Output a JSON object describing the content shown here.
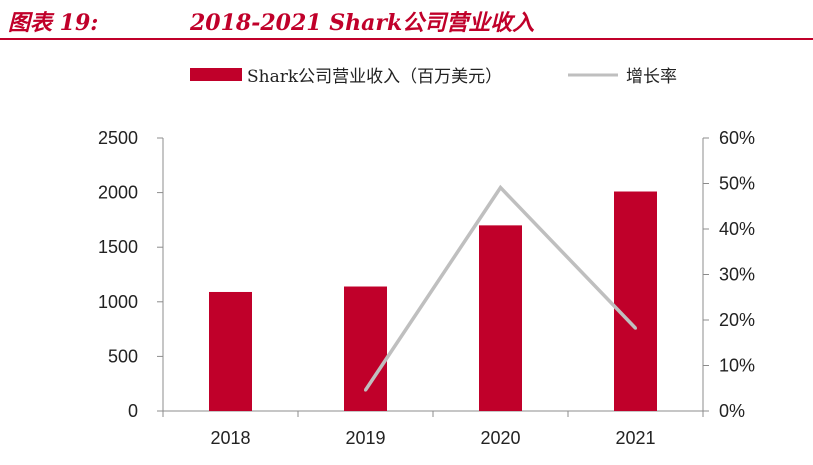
{
  "header": {
    "figure_label": "图表 19:",
    "figure_title": "2018-2021 Shark公司营业收入"
  },
  "colors": {
    "accent": "#c0002a",
    "bar": "#c0002a",
    "line": "#bfbfbf",
    "axis": "#8c8c8c"
  },
  "chart_data": {
    "type": "bar",
    "categories": [
      "2018",
      "2019",
      "2020",
      "2021"
    ],
    "series": [
      {
        "name": "Shark公司营业收入（百万美元）",
        "type": "bar",
        "axis": "left",
        "values": [
          1090,
          1140,
          1700,
          2010
        ]
      },
      {
        "name": "增长率",
        "type": "line",
        "axis": "right",
        "values": [
          null,
          4.6,
          49.1,
          18.2
        ]
      }
    ],
    "left_axis": {
      "min": 0,
      "max": 2500,
      "ticks": [
        0,
        500,
        1000,
        1500,
        2000,
        2500
      ]
    },
    "right_axis": {
      "min": 0,
      "max": 60,
      "ticks": [
        "0%",
        "10%",
        "20%",
        "30%",
        "40%",
        "50%",
        "60%"
      ]
    },
    "legend": [
      "Shark公司营业收入（百万美元）",
      "增长率"
    ],
    "legend_position": "top",
    "grid": false
  }
}
